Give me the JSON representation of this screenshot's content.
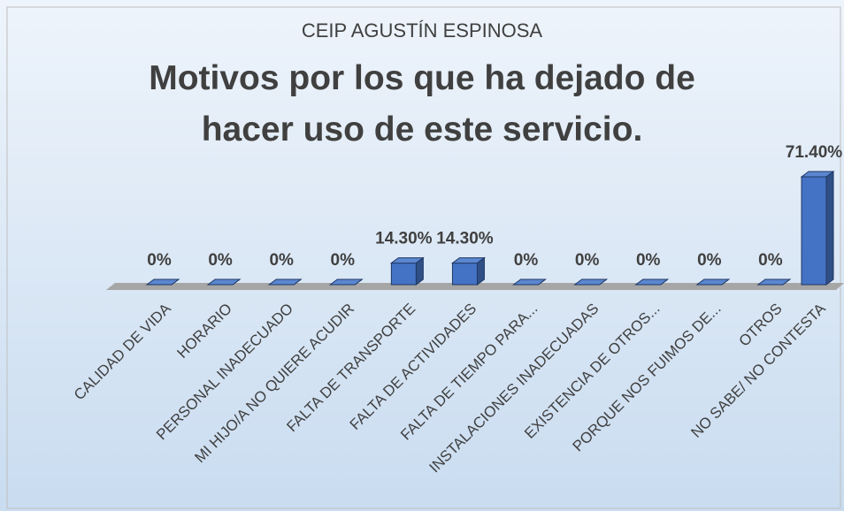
{
  "chart_data": {
    "type": "bar3d",
    "subtitle": "CEIP AGUSTÍN ESPINOSA",
    "title": "Motivos por los que ha dejado de hacer uso de este servicio.",
    "categories": [
      "CALIDAD DE VIDA",
      "HORARIO",
      "PERSONAL INADECUADO",
      "MI HIJO/A NO QUIERE ACUDIR",
      "FALTA DE TRANSPORTE",
      "FALTA DE ACTIVIDADES",
      "FALTA DE TIEMPO PARA...",
      "INSTALACIONES INADECUADAS",
      "EXISTENCIA DE OTROS...",
      "PORQUE NOS FUIMOS DE...",
      "OTROS",
      "NO SABE/ NO CONTESTA"
    ],
    "values": [
      0,
      0,
      0,
      0,
      14.3,
      14.3,
      0,
      0,
      0,
      0,
      0,
      71.4
    ],
    "value_labels": [
      "0%",
      "0%",
      "0%",
      "0%",
      "14.30%",
      "14.30%",
      "0%",
      "0%",
      "0%",
      "0%",
      "0%",
      "71.40%"
    ],
    "color": "#4472c4"
  }
}
